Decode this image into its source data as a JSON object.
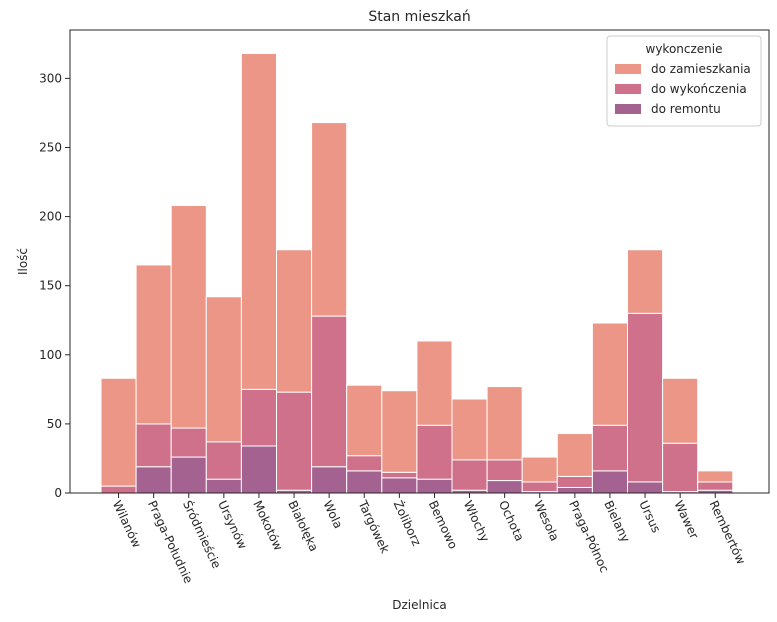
{
  "chart_data": {
    "type": "bar",
    "stacked": true,
    "title": "Stan mieszkań",
    "xlabel": "Dzielnica",
    "ylabel": "Ilość",
    "ylim": [
      0,
      335
    ],
    "yticks": [
      0,
      50,
      100,
      150,
      200,
      250,
      300
    ],
    "categories": [
      "Wilanów",
      "Praga-Południe",
      "Śródmieście",
      "Ursynów",
      "Mokotów",
      "Białołęka",
      "Wola",
      "Targówek",
      "Żoliborz",
      "Bemowo",
      "Włochy",
      "Ochota",
      "Wesoła",
      "Praga-Północ",
      "Bielany",
      "Ursus",
      "Wawer",
      "Rembertów"
    ],
    "series": [
      {
        "name": "do remontu",
        "color": "#a3628f",
        "values": [
          0,
          19,
          26,
          10,
          34,
          2,
          19,
          16,
          11,
          10,
          2,
          9,
          1,
          4,
          16,
          8,
          1,
          2
        ]
      },
      {
        "name": "do wykończenia",
        "color": "#d0718b",
        "values": [
          5,
          31,
          21,
          27,
          41,
          71,
          109,
          11,
          4,
          39,
          22,
          15,
          7,
          8,
          33,
          122,
          35,
          6
        ]
      },
      {
        "name": "do zamieszkania",
        "color": "#eb9686",
        "values": [
          78,
          115,
          161,
          105,
          243,
          103,
          140,
          51,
          59,
          61,
          44,
          53,
          18,
          31,
          74,
          46,
          47,
          8
        ]
      }
    ],
    "legend": {
      "title": "wykonczenie",
      "position": "top-right",
      "entries": [
        "do zamieszkania",
        "do wykończenia",
        "do remontu"
      ]
    },
    "grid": false
  }
}
